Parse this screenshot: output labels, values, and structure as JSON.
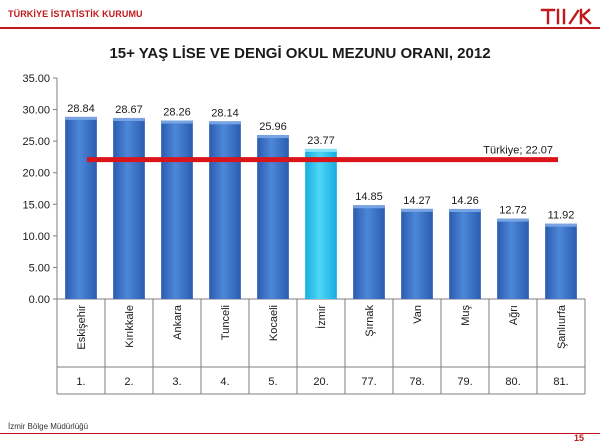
{
  "header": {
    "org_name": "TÜRKİYE İSTATİSTİK KURUMU",
    "logo_text": "TÜİK"
  },
  "footer": {
    "office": "İzmir Bölge Müdürlüğü",
    "page_number": "15"
  },
  "colors": {
    "brand_red": "#c0181b",
    "bar_blue": "#3a72c8",
    "bar_highlight": "#29c4ef",
    "reference_line": "#d9141b"
  },
  "chart_data": {
    "type": "bar",
    "title": "15+ YAŞ LİSE VE DENGİ OKUL MEZUNU ORANI, 2012",
    "categories": [
      "Eskişehir",
      "Kırıkkale",
      "Ankara",
      "Tunceli",
      "Kocaeli",
      "İzmir",
      "Şırnak",
      "Van",
      "Muş",
      "Ağrı",
      "Şanlıurfa"
    ],
    "ranks": [
      "1.",
      "2.",
      "3.",
      "4.",
      "5.",
      "20.",
      "77.",
      "78.",
      "79.",
      "80.",
      "81."
    ],
    "values": [
      28.84,
      28.67,
      28.26,
      28.14,
      25.96,
      23.77,
      14.85,
      14.27,
      14.26,
      12.72,
      11.92
    ],
    "value_labels": [
      "28.84",
      "28.67",
      "28.26",
      "28.14",
      "25.96",
      "23.77",
      "14.85",
      "14.27",
      "14.26",
      "12.72",
      "11.92"
    ],
    "highlight_category": "İzmir",
    "reference_line": {
      "label": "Türkiye; 22.07",
      "value": 22.07
    },
    "ylim": [
      0,
      35
    ],
    "yticks": [
      "0.00",
      "5.00",
      "10.00",
      "15.00",
      "20.00",
      "25.00",
      "30.00",
      "35.00"
    ],
    "ytick_values": [
      0,
      5,
      10,
      15,
      20,
      25,
      30,
      35
    ],
    "grid": false,
    "legend": "none"
  }
}
